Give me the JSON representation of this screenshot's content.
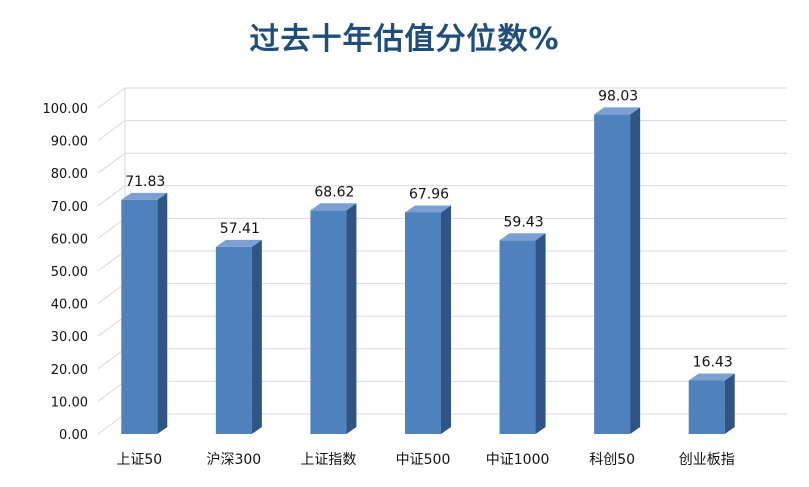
{
  "chart_data": {
    "type": "bar",
    "title": "过去十年估值分位数%",
    "categories": [
      "上证50",
      "沪深300",
      "上证指数",
      "中证500",
      "中证1000",
      "科创50",
      "创业板指"
    ],
    "values": [
      71.83,
      57.41,
      68.62,
      67.96,
      59.43,
      98.03,
      16.43
    ],
    "value_labels": [
      "71.83",
      "57.41",
      "68.62",
      "67.96",
      "59.43",
      "98.03",
      "16.43"
    ],
    "yticks": [
      "0.00",
      "10.00",
      "20.00",
      "30.00",
      "40.00",
      "50.00",
      "60.00",
      "70.00",
      "80.00",
      "90.00",
      "100.00"
    ],
    "ylim": [
      0,
      100
    ],
    "grid": true,
    "legend": "none",
    "style": "3d-column",
    "colors": {
      "front": "#4f81bd",
      "side": "#2f5486",
      "top": "#7aa0d4",
      "grid": "#d9d9d9",
      "title": "#1f4e79"
    }
  }
}
